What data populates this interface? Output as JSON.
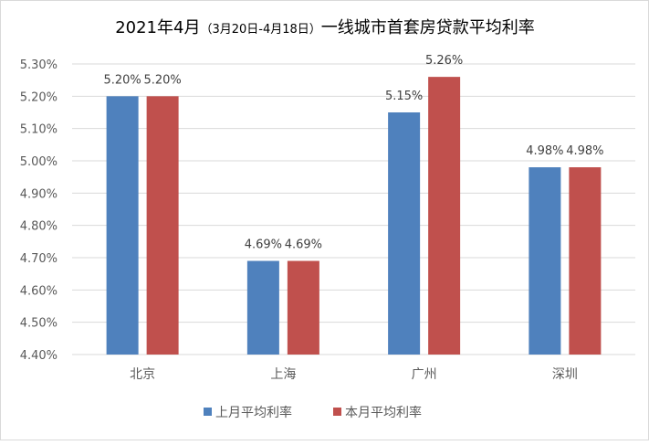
{
  "chart_data": {
    "type": "bar",
    "title": "2021年4月（3月20日-4月18日）一线城市首套房贷款平均利率",
    "title_main_start": "2021年4月",
    "title_paren": "（3月20日-4月18日）",
    "title_main_end": "一线城市首套房贷款平均利率",
    "categories": [
      "北京",
      "上海",
      "广州",
      "深圳"
    ],
    "series": [
      {
        "name": "上月平均利率",
        "values": [
          5.2,
          4.69,
          5.15,
          4.98
        ],
        "color": "#4f81bd",
        "labels": [
          "5.20%",
          "4.69%",
          "5.15%",
          "4.98%"
        ]
      },
      {
        "name": "本月平均利率",
        "values": [
          5.2,
          4.69,
          5.26,
          4.98
        ],
        "color": "#c0504d",
        "labels": [
          "5.20%",
          "4.69%",
          "5.26%",
          "4.98%"
        ]
      }
    ],
    "ylim": [
      4.4,
      5.3
    ],
    "yticks": [
      "4.40%",
      "4.50%",
      "4.60%",
      "4.70%",
      "4.80%",
      "4.90%",
      "5.00%",
      "5.10%",
      "5.20%",
      "5.30%"
    ],
    "grid": true,
    "legend": "bottom",
    "xlabel": "",
    "ylabel": ""
  }
}
